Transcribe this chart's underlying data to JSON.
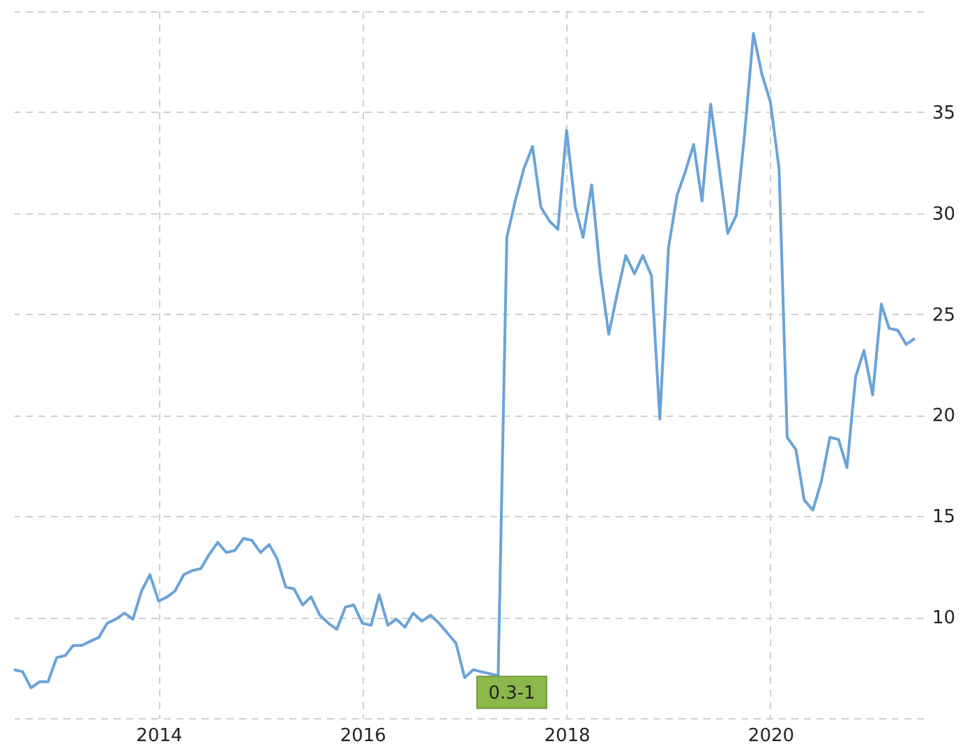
{
  "chart_data": {
    "type": "line",
    "x": [
      "2012-08",
      "2012-09",
      "2012-10",
      "2012-11",
      "2012-12",
      "2013-01",
      "2013-02",
      "2013-03",
      "2013-04",
      "2013-05",
      "2013-06",
      "2013-07",
      "2013-08",
      "2013-09",
      "2013-10",
      "2013-11",
      "2013-12",
      "2014-01",
      "2014-02",
      "2014-03",
      "2014-04",
      "2014-05",
      "2014-06",
      "2014-07",
      "2014-08",
      "2014-09",
      "2014-10",
      "2014-11",
      "2014-12",
      "2015-01",
      "2015-02",
      "2015-03",
      "2015-04",
      "2015-05",
      "2015-06",
      "2015-07",
      "2015-08",
      "2015-09",
      "2015-10",
      "2015-11",
      "2015-12",
      "2016-01",
      "2016-02",
      "2016-03",
      "2016-04",
      "2016-05",
      "2016-06",
      "2016-07",
      "2016-08",
      "2016-09",
      "2016-10",
      "2016-11",
      "2016-12",
      "2017-01",
      "2017-02",
      "2017-03",
      "2017-04",
      "2017-05",
      "2017-06",
      "2017-07",
      "2017-08",
      "2017-09",
      "2017-10",
      "2017-11",
      "2017-12",
      "2018-01",
      "2018-02",
      "2018-03",
      "2018-04",
      "2018-05",
      "2018-06",
      "2018-07",
      "2018-08",
      "2018-09",
      "2018-10",
      "2018-11",
      "2018-12",
      "2019-01",
      "2019-02",
      "2019-03",
      "2019-04",
      "2019-05",
      "2019-06",
      "2019-07",
      "2019-08",
      "2019-09",
      "2019-10",
      "2019-11",
      "2019-12",
      "2020-01",
      "2020-02",
      "2020-03",
      "2020-04",
      "2020-05",
      "2020-06",
      "2020-07",
      "2020-08",
      "2020-09",
      "2020-10",
      "2020-11",
      "2020-12",
      "2021-01",
      "2021-02",
      "2021-03",
      "2021-04",
      "2021-05",
      "2021-06"
    ],
    "series": [
      {
        "color": "#6aa3d9",
        "values": [
          7.4,
          7.3,
          6.5,
          6.8,
          6.8,
          8.0,
          8.1,
          8.6,
          8.6,
          8.8,
          9.0,
          9.7,
          9.9,
          10.2,
          9.9,
          11.3,
          12.1,
          10.8,
          11.0,
          11.3,
          12.1,
          12.3,
          12.4,
          13.1,
          13.7,
          13.2,
          13.3,
          13.9,
          13.8,
          13.2,
          13.6,
          12.9,
          11.5,
          11.4,
          10.6,
          11.0,
          10.1,
          9.7,
          9.4,
          10.5,
          10.6,
          9.7,
          9.6,
          11.1,
          9.6,
          9.9,
          9.5,
          10.2,
          9.8,
          10.1,
          9.7,
          9.2,
          8.7,
          7.0,
          7.4,
          7.3,
          7.2,
          7.1,
          28.8,
          30.6,
          32.2,
          33.3,
          30.3,
          29.6,
          29.2,
          34.1,
          30.3,
          28.8,
          31.4,
          27.1,
          24.0,
          26.0,
          27.9,
          27.0,
          27.9,
          26.9,
          19.8,
          28.3,
          30.9,
          32.0,
          33.4,
          30.6,
          35.4,
          32.3,
          29.0,
          29.9,
          34.0,
          38.9,
          36.9,
          35.5,
          32.2,
          18.9,
          18.3,
          15.8,
          15.3,
          16.7,
          18.9,
          18.8,
          17.4,
          21.9,
          23.2,
          21.0,
          25.5,
          24.3,
          24.2,
          23.5,
          23.8
        ]
      }
    ],
    "xlim": [
      "2012-08",
      "2021-07"
    ],
    "xticks": [
      {
        "value": "2014",
        "label": "2014"
      },
      {
        "value": "2016",
        "label": "2016"
      },
      {
        "value": "2018",
        "label": "2018"
      },
      {
        "value": "2020",
        "label": "2020"
      }
    ],
    "ylim": [
      5,
      40
    ],
    "yticks": [
      {
        "value": 5,
        "label": null
      },
      10,
      15,
      20,
      25,
      30,
      35,
      {
        "value": 40,
        "label": null
      }
    ],
    "grid": true,
    "line_style": "solid",
    "marker": "none",
    "annotations": [
      "0.3-1"
    ]
  }
}
